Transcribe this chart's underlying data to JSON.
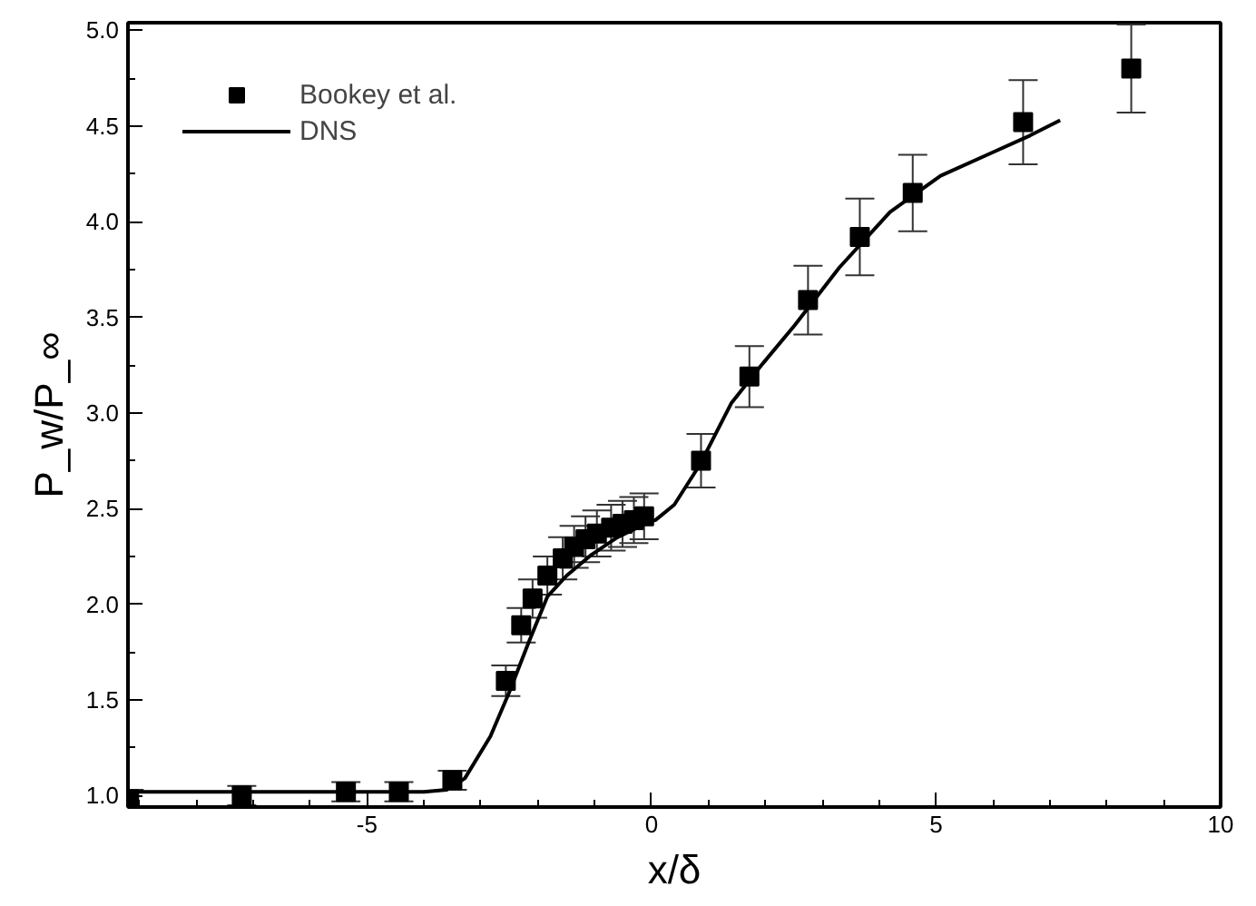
{
  "chart_data": {
    "type": "scatter",
    "xlabel": "x/δ",
    "ylabel": "P_w/P_∞",
    "xlim": [
      -9.2,
      10
    ],
    "ylim": [
      0.94,
      5.04
    ],
    "xticks": [
      {
        "value": -9,
        "label": null
      },
      {
        "value": -8,
        "label": null
      },
      {
        "value": -7,
        "label": null
      },
      {
        "value": -6,
        "label": null
      },
      -5,
      {
        "value": -4,
        "label": null
      },
      {
        "value": -3,
        "label": null
      },
      {
        "value": -2,
        "label": null
      },
      {
        "value": -1,
        "label": null
      },
      0,
      {
        "value": 1,
        "label": null
      },
      {
        "value": 2,
        "label": null
      },
      {
        "value": 3,
        "label": null
      },
      {
        "value": 4,
        "label": null
      },
      5,
      {
        "value": 6,
        "label": null
      },
      {
        "value": 7,
        "label": null
      },
      {
        "value": 8,
        "label": null
      },
      {
        "value": 9,
        "label": null
      },
      10
    ],
    "yticks": [
      {
        "value": 1,
        "label": "1.0"
      },
      {
        "value": 1.25,
        "label": null
      },
      {
        "value": 1.5,
        "label": "1.5"
      },
      {
        "value": 1.75,
        "label": null
      },
      {
        "value": 2,
        "label": "2.0"
      },
      {
        "value": 2.25,
        "label": null
      },
      {
        "value": 2.5,
        "label": "2.5"
      },
      {
        "value": 2.75,
        "label": null
      },
      {
        "value": 3,
        "label": "3.0"
      },
      {
        "value": 3.25,
        "label": null
      },
      {
        "value": 3.5,
        "label": "3.5"
      },
      {
        "value": 3.75,
        "label": null
      },
      {
        "value": 4,
        "label": "4.0"
      },
      {
        "value": 4.25,
        "label": null
      },
      {
        "value": 4.5,
        "label": "4.5"
      },
      {
        "value": 4.75,
        "label": null
      },
      {
        "value": 5,
        "label": "5.0"
      }
    ],
    "grid": false,
    "legend": "top left",
    "series": [
      {
        "name": "Bookey et al.",
        "marker": "square",
        "color": "#000000",
        "x": [
          -9.18,
          -7.2,
          -5.37,
          -4.44,
          -3.5,
          -2.56,
          -2.29,
          -2.09,
          -1.83,
          -1.56,
          -1.36,
          -1.16,
          -0.96,
          -0.71,
          -0.51,
          -0.31,
          -0.13,
          0.87,
          1.72,
          2.75,
          3.66,
          4.59,
          6.53,
          8.43
        ],
        "values": [
          0.98,
          1.0,
          1.02,
          1.02,
          1.08,
          1.6,
          1.89,
          2.03,
          2.15,
          2.24,
          2.3,
          2.34,
          2.37,
          2.4,
          2.42,
          2.44,
          2.46,
          2.75,
          3.19,
          3.59,
          3.92,
          4.15,
          4.52,
          4.8
        ],
        "errors": [
          0.05,
          0.05,
          0.05,
          0.05,
          0.05,
          0.08,
          0.09,
          0.1,
          0.1,
          0.11,
          0.11,
          0.12,
          0.12,
          0.12,
          0.12,
          0.12,
          0.12,
          0.14,
          0.16,
          0.18,
          0.2,
          0.2,
          0.22,
          0.23
        ]
      },
      {
        "name": "DNS",
        "type": "line",
        "line_style": "solid",
        "color": "#000000",
        "x": [
          -9.2,
          -6.0,
          -4.0,
          -3.6,
          -3.28,
          -2.83,
          -2.5,
          -2.16,
          -1.83,
          -1.49,
          -1.05,
          -0.6,
          -0.04,
          0.07,
          0.4,
          0.85,
          1.4,
          1.96,
          2.52,
          3.3,
          4.19,
          5.08,
          5.98,
          6.65,
          7.18
        ],
        "values": [
          1.02,
          1.02,
          1.02,
          1.03,
          1.09,
          1.31,
          1.54,
          1.8,
          2.04,
          2.15,
          2.26,
          2.35,
          2.43,
          2.44,
          2.52,
          2.73,
          3.05,
          3.26,
          3.46,
          3.76,
          4.05,
          4.24,
          4.36,
          4.45,
          4.53
        ]
      }
    ]
  }
}
